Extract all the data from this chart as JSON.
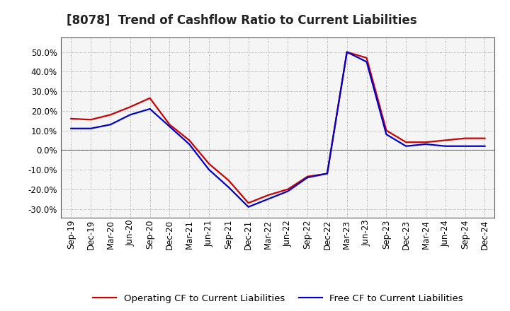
{
  "title": "[8078]  Trend of Cashflow Ratio to Current Liabilities",
  "x_labels": [
    "Sep-19",
    "Dec-19",
    "Mar-20",
    "Jun-20",
    "Sep-20",
    "Dec-20",
    "Mar-21",
    "Jun-21",
    "Sep-21",
    "Dec-21",
    "Mar-22",
    "Jun-22",
    "Sep-22",
    "Dec-22",
    "Mar-23",
    "Jun-23",
    "Sep-23",
    "Dec-23",
    "Mar-24",
    "Jun-24",
    "Sep-24",
    "Dec-24"
  ],
  "operating_cf": [
    0.16,
    0.155,
    0.18,
    0.22,
    0.265,
    0.13,
    0.05,
    -0.07,
    -0.155,
    -0.27,
    -0.23,
    -0.2,
    -0.135,
    -0.12,
    0.5,
    0.47,
    0.1,
    0.04,
    0.04,
    0.05,
    0.06,
    0.06
  ],
  "free_cf": [
    0.11,
    0.11,
    0.13,
    0.18,
    0.21,
    0.12,
    0.03,
    -0.1,
    -0.19,
    -0.29,
    -0.25,
    -0.21,
    -0.14,
    -0.12,
    0.5,
    0.45,
    0.08,
    0.02,
    0.03,
    0.02,
    0.02,
    0.02
  ],
  "operating_color": "#cc0000",
  "free_color": "#0000cc",
  "ylim": [
    -0.345,
    0.575
  ],
  "yticks": [
    -0.3,
    -0.2,
    -0.1,
    0.0,
    0.1,
    0.2,
    0.3,
    0.4,
    0.5
  ],
  "background_color": "#ffffff",
  "plot_bg_color": "#f5f5f5",
  "grid_color": "#999999",
  "spine_color": "#555555",
  "legend_op": "Operating CF to Current Liabilities",
  "legend_free": "Free CF to Current Liabilities",
  "title_fontsize": 12,
  "axis_fontsize": 8.5,
  "legend_fontsize": 9.5
}
